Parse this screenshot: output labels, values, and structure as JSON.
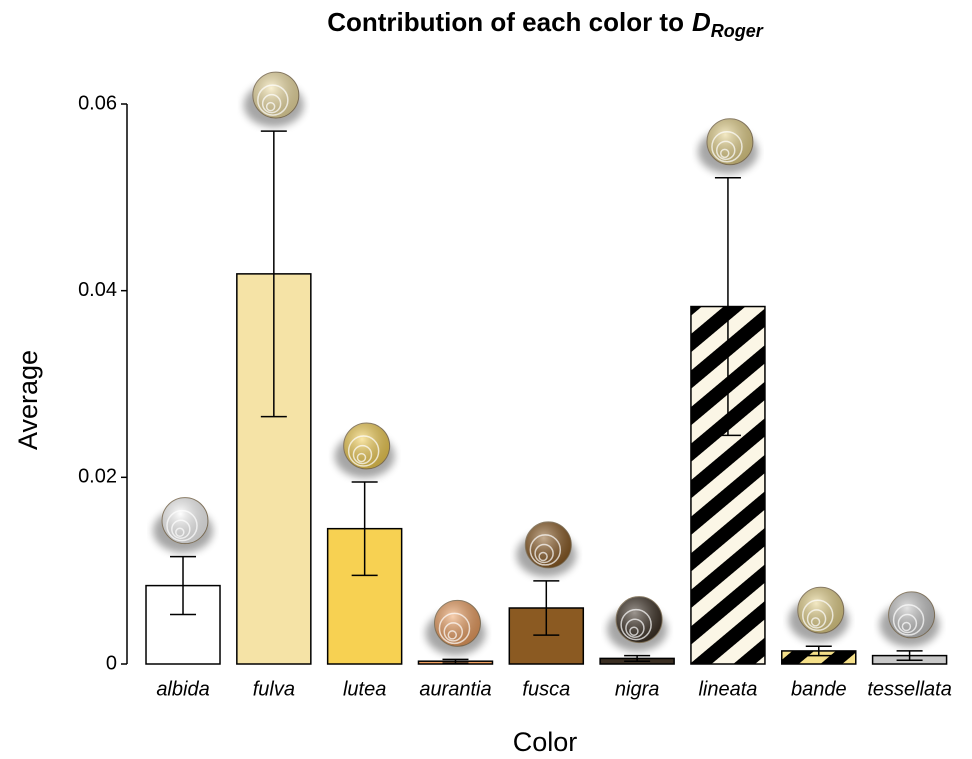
{
  "chart_data": {
    "type": "bar",
    "title": "Contribution of each color to",
    "title_symbol": "D",
    "title_subscript": "Roger",
    "x_label": "Color",
    "y_label": "Average",
    "categories": [
      "albida",
      "fulva",
      "lutea",
      "aurantia",
      "fusca",
      "nigra",
      "lineata",
      "bande",
      "tessellata"
    ],
    "values": [
      0.0084,
      0.0418,
      0.0145,
      0.0003,
      0.006,
      0.0006,
      0.0383,
      0.0014,
      0.0009
    ],
    "errors": [
      0.0031,
      0.0153,
      0.005,
      0.0002,
      0.0029,
      0.0003,
      0.0138,
      0.0005,
      0.0005
    ],
    "colors": [
      "#ffffff",
      "#f5e3a6",
      "#f7d152",
      "#f0a060",
      "#8b5a22",
      "#3a2e22",
      "#fbf6e6",
      "#f5e08a",
      "#c8c8c8"
    ],
    "hatched": [
      false,
      false,
      false,
      false,
      false,
      false,
      true,
      true,
      false
    ],
    "hatch_color": "#000000",
    "ylim": [
      0,
      0.06
    ],
    "yticks": [
      0,
      0.02,
      0.04,
      0.06
    ]
  }
}
